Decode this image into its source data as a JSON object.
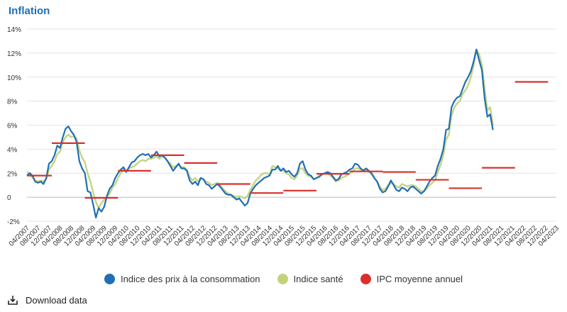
{
  "title": "Inflation",
  "download_label": "Download data",
  "legend": [
    {
      "label": "Indice des prix à la consommation",
      "color": "#1f6fb5"
    },
    {
      "label": "Indice santé",
      "color": "#c2d27a"
    },
    {
      "label": "IPC moyenne annuel",
      "color": "#d9302b"
    }
  ],
  "chart_data": {
    "type": "line",
    "title": "Inflation",
    "xlabel": "",
    "ylabel": "",
    "ylim": [
      -2,
      14
    ],
    "yticks": [
      -2,
      0,
      2,
      4,
      6,
      8,
      10,
      12,
      14
    ],
    "ytick_labels": [
      "-2%",
      "0",
      "2%",
      "4%",
      "6%",
      "8%",
      "10%",
      "12%",
      "14%"
    ],
    "xticks": [
      "04/2007",
      "08/2007",
      "12/2007",
      "04/2008",
      "08/2008",
      "12/2008",
      "04/2009",
      "08/2009",
      "12/2009",
      "04/2010",
      "08/2010",
      "12/2010",
      "04/2011",
      "08/2011",
      "12/2011",
      "04/2012",
      "08/2012",
      "12/2012",
      "04/2013",
      "08/2013",
      "12/2013",
      "04/2014",
      "08/2014",
      "12/2014",
      "04/2015",
      "08/2015",
      "12/2015",
      "04/2016",
      "08/2016",
      "12/2016",
      "04/2017",
      "08/2017",
      "12/2017",
      "04/2018",
      "08/2018",
      "12/2018",
      "04/2019",
      "08/2019",
      "12/2019",
      "04/2020",
      "08/2020",
      "12/2020",
      "04/2021",
      "08/2021",
      "12/2021",
      "04/2022",
      "08/2022",
      "12/2022",
      "04/2023"
    ],
    "grid": true,
    "legend_position": "bottom",
    "series": [
      {
        "name": "Indice des prix à la consommation",
        "color": "#1f6fb5",
        "values": [
          1.8,
          2.0,
          1.8,
          1.3,
          1.2,
          1.3,
          1.1,
          1.6,
          2.8,
          3.0,
          3.5,
          4.3,
          4.1,
          5.0,
          5.7,
          5.9,
          5.5,
          5.2,
          4.6,
          3.0,
          2.4,
          2.0,
          0.5,
          0.4,
          -0.6,
          -1.7,
          -0.9,
          -1.2,
          -0.8,
          0.1,
          0.7,
          1.0,
          1.6,
          2.0,
          2.3,
          2.5,
          2.1,
          2.5,
          2.9,
          3.0,
          3.3,
          3.5,
          3.6,
          3.5,
          3.6,
          3.3,
          3.5,
          3.8,
          3.4,
          3.5,
          3.3,
          3.0,
          2.6,
          2.2,
          2.5,
          2.8,
          2.4,
          2.4,
          2.2,
          1.4,
          1.1,
          1.3,
          1.0,
          1.6,
          1.5,
          1.1,
          1.0,
          0.7,
          0.9,
          1.1,
          0.9,
          0.6,
          0.3,
          0.2,
          0.2,
          0.0,
          -0.2,
          -0.1,
          -0.4,
          -0.7,
          -0.5,
          0.3,
          0.7,
          1.0,
          1.2,
          1.4,
          1.6,
          1.7,
          1.8,
          2.3,
          2.3,
          2.6,
          2.2,
          2.4,
          2.1,
          2.2,
          1.9,
          1.7,
          2.0,
          2.8,
          3.0,
          2.3,
          1.9,
          1.8,
          1.5,
          1.6,
          1.7,
          1.9,
          2.0,
          2.1,
          2.0,
          1.7,
          1.4,
          1.5,
          1.9,
          2.0,
          2.1,
          2.3,
          2.4,
          2.8,
          2.7,
          2.4,
          2.2,
          2.4,
          2.2,
          2.0,
          1.6,
          1.3,
          0.7,
          0.4,
          0.5,
          0.9,
          1.4,
          1.0,
          0.6,
          0.5,
          0.8,
          0.7,
          0.5,
          0.8,
          0.9,
          0.7,
          0.5,
          0.3,
          0.5,
          0.9,
          1.3,
          1.6,
          1.8,
          2.6,
          3.2,
          4.0,
          5.6,
          5.7,
          7.5,
          8.0,
          8.3,
          8.4,
          9.0,
          9.6,
          10.0,
          10.5,
          11.3,
          12.3,
          11.4,
          10.6,
          8.2,
          6.7,
          6.9,
          5.6
        ]
      },
      {
        "name": "Indice santé",
        "color": "#c2d27a",
        "values": [
          2.1,
          2.0,
          1.6,
          1.4,
          1.3,
          1.4,
          1.3,
          1.5,
          2.3,
          2.6,
          3.0,
          3.6,
          3.8,
          4.6,
          5.0,
          5.2,
          5.0,
          5.1,
          4.9,
          3.9,
          3.3,
          2.9,
          2.0,
          1.3,
          0.4,
          -0.4,
          -0.9,
          -0.5,
          -0.2,
          0.0,
          0.3,
          0.8,
          1.1,
          1.6,
          2.0,
          2.3,
          2.2,
          2.4,
          2.5,
          2.6,
          2.8,
          3.0,
          3.1,
          3.0,
          3.2,
          3.2,
          3.3,
          3.4,
          3.2,
          3.4,
          3.3,
          3.0,
          2.8,
          2.5,
          2.6,
          2.7,
          2.5,
          2.5,
          2.3,
          1.7,
          1.4,
          1.6,
          1.3,
          1.6,
          1.5,
          1.3,
          1.2,
          1.0,
          1.1,
          1.2,
          1.0,
          0.7,
          0.5,
          0.3,
          0.2,
          0.1,
          0.0,
          0.1,
          0.0,
          -0.1,
          0.1,
          0.6,
          1.0,
          1.4,
          1.6,
          1.9,
          2.0,
          2.0,
          1.9,
          2.6,
          2.5,
          2.4,
          2.2,
          2.2,
          2.0,
          1.9,
          1.6,
          1.5,
          1.8,
          2.4,
          2.4,
          2.0,
          1.8,
          1.7,
          1.5,
          1.6,
          1.8,
          1.9,
          2.0,
          2.0,
          1.8,
          1.6,
          1.3,
          1.4,
          1.6,
          1.7,
          1.8,
          2.0,
          2.1,
          2.4,
          2.4,
          2.3,
          2.3,
          2.3,
          2.1,
          1.9,
          1.6,
          1.3,
          0.9,
          0.6,
          0.7,
          1.0,
          1.2,
          1.1,
          0.9,
          0.8,
          1.1,
          1.0,
          0.9,
          1.0,
          1.0,
          0.9,
          0.7,
          0.5,
          0.5,
          0.7,
          1.0,
          1.2,
          1.4,
          2.1,
          2.7,
          3.5,
          4.8,
          5.2,
          6.8,
          7.5,
          7.8,
          8.0,
          8.6,
          8.9,
          9.3,
          10.0,
          11.0,
          12.3,
          11.9,
          11.0,
          9.0,
          7.2,
          7.5,
          6.0
        ]
      }
    ],
    "annual_average": {
      "name": "IPC moyenne annuel",
      "color": "#d9302b",
      "segments": [
        {
          "year": 2007,
          "value": 1.8
        },
        {
          "year": 2008,
          "value": 4.5
        },
        {
          "year": 2009,
          "value": -0.05
        },
        {
          "year": 2010,
          "value": 2.2
        },
        {
          "year": 2011,
          "value": 3.5
        },
        {
          "year": 2012,
          "value": 2.85
        },
        {
          "year": 2013,
          "value": 1.1
        },
        {
          "year": 2014,
          "value": 0.35
        },
        {
          "year": 2015,
          "value": 0.55
        },
        {
          "year": 2016,
          "value": 1.95
        },
        {
          "year": 2017,
          "value": 2.15
        },
        {
          "year": 2018,
          "value": 2.1
        },
        {
          "year": 2019,
          "value": 1.45
        },
        {
          "year": 2020,
          "value": 0.75
        },
        {
          "year": 2021,
          "value": 2.45
        },
        {
          "year": 2022,
          "value": 9.6
        }
      ]
    }
  }
}
